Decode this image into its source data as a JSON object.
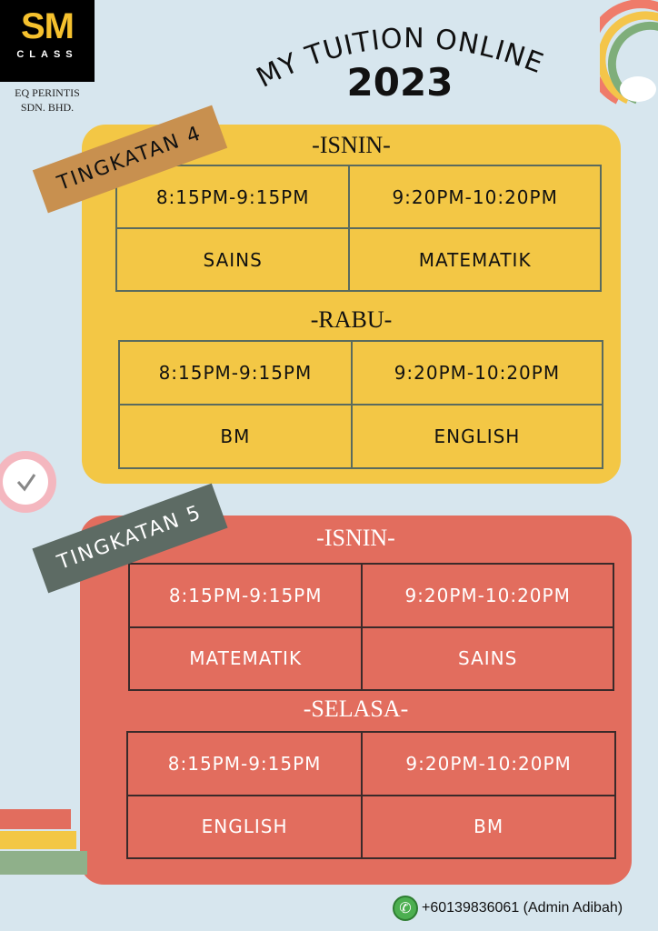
{
  "logo": {
    "main": "SM",
    "sub": "CLASS"
  },
  "company": {
    "line1": "EQ PERINTIS",
    "line2": "SDN. BHD."
  },
  "title": {
    "line1": "MY TUITION ONLINE",
    "year": "2023"
  },
  "colors": {
    "background": "#d7e6ee",
    "yellow_panel": "#f3c745",
    "red_panel": "#e26d5e",
    "tag4": "#c8904f",
    "tag5": "#5d6b64"
  },
  "tingkatan4": {
    "label": "TINGKATAN 4",
    "days": [
      {
        "day": "-ISNIN-",
        "times": [
          "8:15PM-9:15PM",
          "9:20PM-10:20PM"
        ],
        "subjects": [
          "SAINS",
          "MATEMATIK"
        ]
      },
      {
        "day": "-RABU-",
        "times": [
          "8:15PM-9:15PM",
          "9:20PM-10:20PM"
        ],
        "subjects": [
          "BM",
          "ENGLISH"
        ]
      }
    ]
  },
  "tingkatan5": {
    "label": "TINGKATAN 5",
    "days": [
      {
        "day": "-ISNIN-",
        "times": [
          "8:15PM-9:15PM",
          "9:20PM-10:20PM"
        ],
        "subjects": [
          "MATEMATIK",
          "SAINS"
        ]
      },
      {
        "day": "-SELASA-",
        "times": [
          "8:15PM-9:15PM",
          "9:20PM-10:20PM"
        ],
        "subjects": [
          "ENGLISH",
          "BM"
        ]
      }
    ]
  },
  "contact": {
    "icon": "phone-icon",
    "text": "+60139836061 (Admin Adibah)"
  }
}
